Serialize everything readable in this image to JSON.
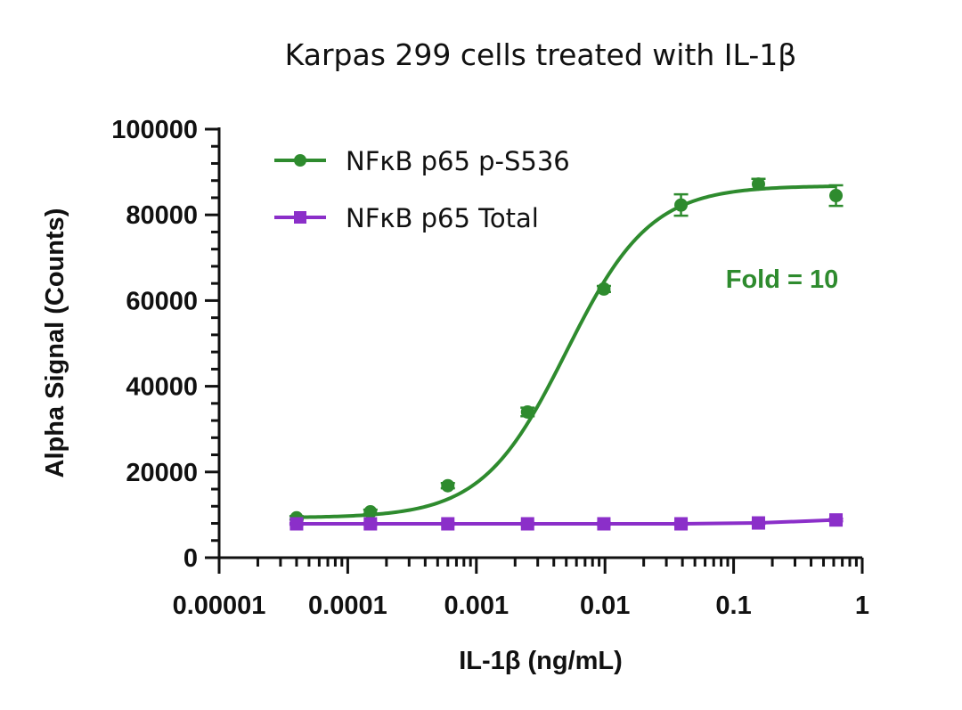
{
  "chart_data": {
    "type": "line",
    "title": "Karpas 299 cells treated with IL-1β",
    "xlabel": "IL-1β (ng/mL)",
    "ylabel": "Alpha Signal (Counts)",
    "x_scale": "log",
    "xlim": [
      1e-05,
      1
    ],
    "ylim": [
      0,
      100000
    ],
    "x_ticks": [
      1e-05,
      0.0001,
      0.001,
      0.01,
      0.1,
      1
    ],
    "x_tick_labels": [
      "0.00001",
      "0.0001",
      "0.001",
      "0.01",
      "0.1",
      "1"
    ],
    "y_ticks": [
      0,
      20000,
      40000,
      60000,
      80000,
      100000
    ],
    "y_tick_labels": [
      "0",
      "20000",
      "40000",
      "60000",
      "80000",
      "100000"
    ],
    "grid": false,
    "legend_position": "top-left",
    "x": [
      4e-05,
      0.00015,
      0.0006,
      0.0025,
      0.0098,
      0.039,
      0.156,
      0.625
    ],
    "series": [
      {
        "name": "NFκB p65 p-S536",
        "color": "#2e8b2e",
        "marker": "circle",
        "values": [
          9300,
          10700,
          16800,
          34000,
          62700,
          82300,
          87200,
          84500
        ],
        "errors": [
          400,
          500,
          600,
          1000,
          700,
          2500,
          1200,
          2400
        ],
        "fit": {
          "bottom": 9300,
          "top": 86800,
          "ec50": 0.005,
          "hill": 1.33
        }
      },
      {
        "name": "NFκB p65 Total",
        "color": "#8b2fc9",
        "marker": "square",
        "values": [
          7900,
          7900,
          7900,
          7900,
          7900,
          7900,
          8100,
          8800
        ],
        "errors": [
          200,
          200,
          200,
          200,
          200,
          200,
          200,
          300
        ]
      }
    ],
    "annotations": [
      {
        "text": "Fold = 10",
        "color": "#2e8b2e"
      }
    ]
  }
}
